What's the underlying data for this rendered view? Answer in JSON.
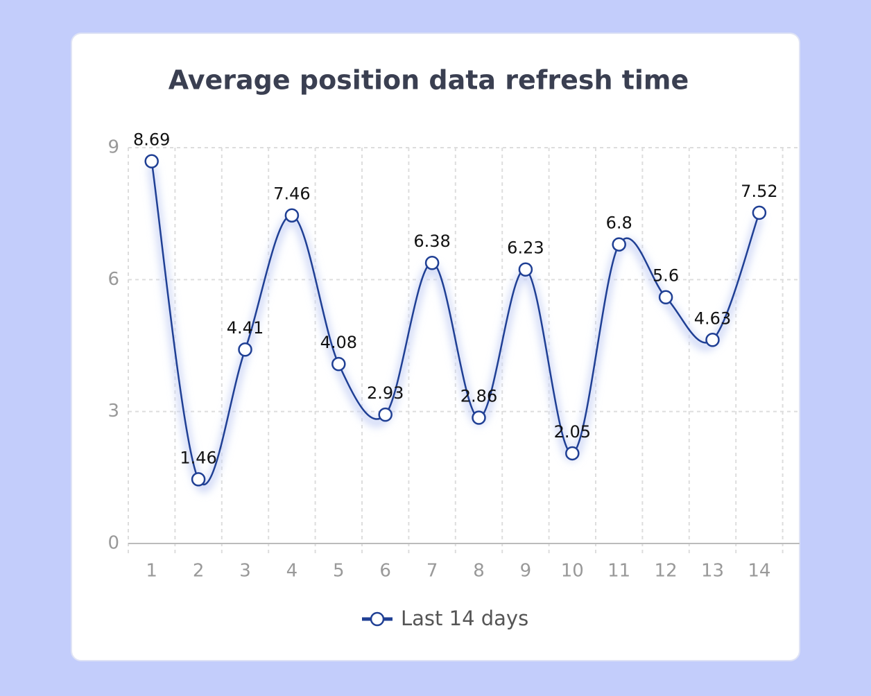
{
  "chart_data": {
    "type": "line",
    "title": "Average position data refresh time",
    "categories": [
      "1",
      "2",
      "3",
      "4",
      "5",
      "6",
      "7",
      "8",
      "9",
      "10",
      "11",
      "12",
      "13",
      "14"
    ],
    "series": [
      {
        "name": "Last 14 days",
        "color": "#1f3f94",
        "values": [
          8.69,
          1.46,
          4.41,
          7.46,
          4.08,
          2.93,
          6.38,
          2.86,
          6.23,
          2.05,
          6.8,
          5.6,
          4.63,
          7.52
        ]
      }
    ],
    "ylim": [
      0,
      9
    ],
    "yticks": [
      0,
      3,
      6,
      9
    ],
    "grid": true,
    "smooth": true,
    "legend": "bottom"
  }
}
